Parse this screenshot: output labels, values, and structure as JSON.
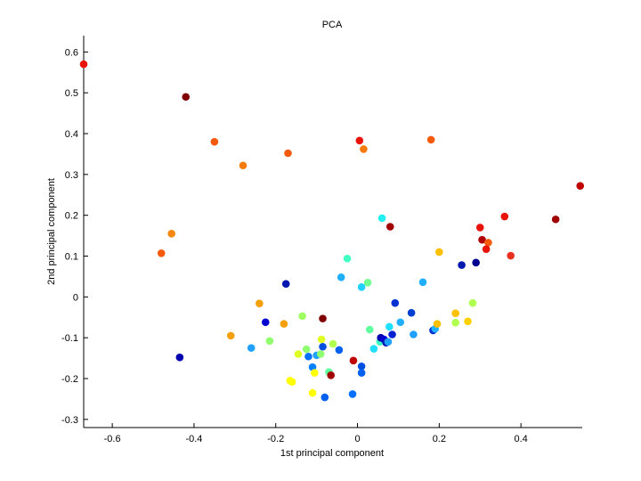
{
  "chart_data": {
    "type": "scatter",
    "title": "PCA",
    "xlabel": "1st principal component",
    "ylabel": "2nd principal component",
    "xlim": [
      -0.67,
      0.55
    ],
    "ylim": [
      -0.32,
      0.64
    ],
    "xticks": [
      -0.6,
      -0.4,
      -0.2,
      0,
      0.2,
      0.4
    ],
    "xtick_labels": [
      "-0.6",
      "-0.4",
      "-0.2",
      "0",
      "0.2",
      "0.4"
    ],
    "yticks": [
      -0.3,
      -0.2,
      -0.1,
      0,
      0.1,
      0.2,
      0.3,
      0.4,
      0.5,
      0.6
    ],
    "ytick_labels": [
      "-0.3",
      "-0.2",
      "-0.1",
      "0",
      "0.1",
      "0.2",
      "0.3",
      "0.4",
      "0.5",
      "0.6"
    ],
    "grid": false,
    "legend": "none",
    "colormap": "jet",
    "points": [
      {
        "x": -0.67,
        "y": 0.57,
        "color": "#e8140a"
      },
      {
        "x": -0.42,
        "y": 0.49,
        "color": "#800000"
      },
      {
        "x": -0.35,
        "y": 0.38,
        "color": "#f55a0a"
      },
      {
        "x": -0.28,
        "y": 0.322,
        "color": "#f57a0a"
      },
      {
        "x": -0.17,
        "y": 0.352,
        "color": "#f55a0a"
      },
      {
        "x": 0.005,
        "y": 0.383,
        "color": "#e8140a"
      },
      {
        "x": 0.015,
        "y": 0.362,
        "color": "#f57a0a"
      },
      {
        "x": 0.18,
        "y": 0.385,
        "color": "#f55a0a"
      },
      {
        "x": -0.455,
        "y": 0.155,
        "color": "#f5870a"
      },
      {
        "x": -0.48,
        "y": 0.107,
        "color": "#f55a0a"
      },
      {
        "x": -0.435,
        "y": -0.148,
        "color": "#0000b0"
      },
      {
        "x": 0.545,
        "y": 0.272,
        "color": "#c00000"
      },
      {
        "x": 0.485,
        "y": 0.19,
        "color": "#a00000"
      },
      {
        "x": 0.36,
        "y": 0.197,
        "color": "#e8140a"
      },
      {
        "x": 0.3,
        "y": 0.17,
        "color": "#e8140a"
      },
      {
        "x": 0.305,
        "y": 0.14,
        "color": "#b00000"
      },
      {
        "x": 0.32,
        "y": 0.133,
        "color": "#f55a0a"
      },
      {
        "x": 0.315,
        "y": 0.117,
        "color": "#e8140a"
      },
      {
        "x": 0.375,
        "y": 0.101,
        "color": "#e83020"
      },
      {
        "x": 0.08,
        "y": 0.172,
        "color": "#a00000"
      },
      {
        "x": 0.06,
        "y": 0.193,
        "color": "#20f0f0"
      },
      {
        "x": 0.2,
        "y": 0.11,
        "color": "#ffc000"
      },
      {
        "x": 0.255,
        "y": 0.078,
        "color": "#0018b0"
      },
      {
        "x": 0.29,
        "y": 0.084,
        "color": "#000090"
      },
      {
        "x": -0.025,
        "y": 0.094,
        "color": "#40ffc0"
      },
      {
        "x": -0.04,
        "y": 0.048,
        "color": "#20b0ff"
      },
      {
        "x": 0.01,
        "y": 0.024,
        "color": "#20d0ff"
      },
      {
        "x": 0.025,
        "y": 0.035,
        "color": "#70ff90"
      },
      {
        "x": 0.16,
        "y": 0.036,
        "color": "#20b0ff"
      },
      {
        "x": -0.175,
        "y": 0.032,
        "color": "#0018b0"
      },
      {
        "x": -0.24,
        "y": -0.016,
        "color": "#f5a00a"
      },
      {
        "x": -0.225,
        "y": -0.062,
        "color": "#0000d0"
      },
      {
        "x": -0.18,
        "y": -0.066,
        "color": "#f5a00a"
      },
      {
        "x": -0.135,
        "y": -0.047,
        "color": "#a0ff60"
      },
      {
        "x": -0.085,
        "y": -0.053,
        "color": "#800000"
      },
      {
        "x": -0.31,
        "y": -0.095,
        "color": "#f5a00a"
      },
      {
        "x": -0.26,
        "y": -0.125,
        "color": "#20a0ff"
      },
      {
        "x": -0.215,
        "y": -0.108,
        "color": "#90ff70"
      },
      {
        "x": -0.145,
        "y": -0.14,
        "color": "#e0ff20"
      },
      {
        "x": -0.125,
        "y": -0.128,
        "color": "#90ff70"
      },
      {
        "x": -0.12,
        "y": -0.146,
        "color": "#0070ff"
      },
      {
        "x": -0.1,
        "y": -0.143,
        "color": "#20a0ff"
      },
      {
        "x": -0.09,
        "y": -0.14,
        "color": "#90ff70"
      },
      {
        "x": -0.088,
        "y": -0.104,
        "color": "#e0ff20"
      },
      {
        "x": -0.085,
        "y": -0.122,
        "color": "#0050e0"
      },
      {
        "x": -0.06,
        "y": -0.115,
        "color": "#b0ff50"
      },
      {
        "x": -0.045,
        "y": -0.13,
        "color": "#0060f0"
      },
      {
        "x": -0.11,
        "y": -0.172,
        "color": "#0080ff"
      },
      {
        "x": -0.105,
        "y": -0.186,
        "color": "#ffff00"
      },
      {
        "x": -0.07,
        "y": -0.184,
        "color": "#60ffa0"
      },
      {
        "x": -0.065,
        "y": -0.192,
        "color": "#a00000"
      },
      {
        "x": -0.165,
        "y": -0.205,
        "color": "#ffff00"
      },
      {
        "x": -0.16,
        "y": -0.208,
        "color": "#ffff00"
      },
      {
        "x": -0.11,
        "y": -0.235,
        "color": "#ffff00"
      },
      {
        "x": -0.08,
        "y": -0.246,
        "color": "#0060f0"
      },
      {
        "x": -0.01,
        "y": -0.156,
        "color": "#c00000"
      },
      {
        "x": 0.01,
        "y": -0.17,
        "color": "#0050e0"
      },
      {
        "x": 0.01,
        "y": -0.186,
        "color": "#0060f0"
      },
      {
        "x": -0.012,
        "y": -0.238,
        "color": "#0070ff"
      },
      {
        "x": 0.03,
        "y": -0.08,
        "color": "#60ffa0"
      },
      {
        "x": 0.04,
        "y": -0.127,
        "color": "#20e0ff"
      },
      {
        "x": 0.055,
        "y": -0.11,
        "color": "#40ffc0"
      },
      {
        "x": 0.057,
        "y": -0.1,
        "color": "#0000b0"
      },
      {
        "x": 0.065,
        "y": -0.104,
        "color": "#0000d0"
      },
      {
        "x": 0.07,
        "y": -0.112,
        "color": "#0018b0"
      },
      {
        "x": 0.075,
        "y": -0.11,
        "color": "#20a0ff"
      },
      {
        "x": 0.078,
        "y": -0.073,
        "color": "#20e0ff"
      },
      {
        "x": 0.085,
        "y": -0.092,
        "color": "#0020d0"
      },
      {
        "x": 0.092,
        "y": -0.015,
        "color": "#0030d0"
      },
      {
        "x": 0.105,
        "y": -0.062,
        "color": "#20b0ff"
      },
      {
        "x": 0.132,
        "y": -0.039,
        "color": "#0040d0"
      },
      {
        "x": 0.137,
        "y": -0.092,
        "color": "#20a0ff"
      },
      {
        "x": 0.185,
        "y": -0.082,
        "color": "#0030d0"
      },
      {
        "x": 0.19,
        "y": -0.078,
        "color": "#20b0ff"
      },
      {
        "x": 0.195,
        "y": -0.066,
        "color": "#ffc000"
      },
      {
        "x": 0.24,
        "y": -0.04,
        "color": "#ffc000"
      },
      {
        "x": 0.24,
        "y": -0.063,
        "color": "#b0ff50"
      },
      {
        "x": 0.27,
        "y": -0.06,
        "color": "#ffd000"
      },
      {
        "x": 0.282,
        "y": -0.015,
        "color": "#b0ff50"
      }
    ]
  }
}
